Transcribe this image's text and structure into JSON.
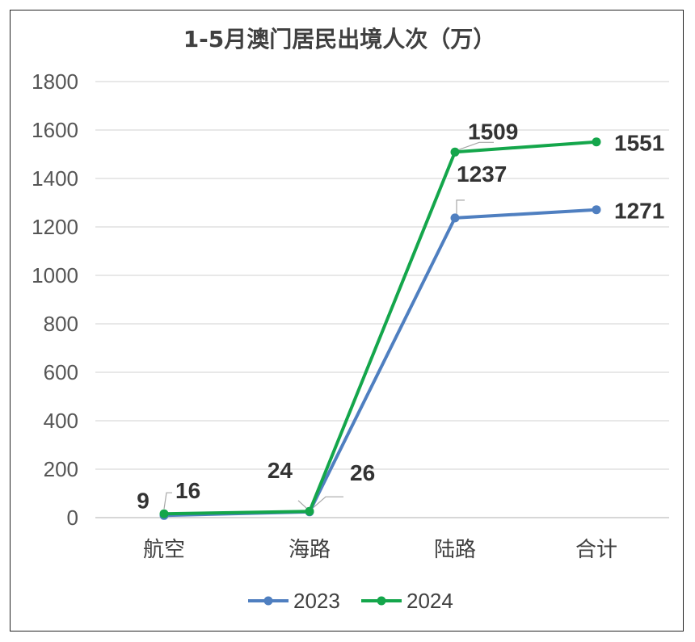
{
  "chart_data": {
    "type": "line",
    "title": "1-5月澳门居民出境人次（万）",
    "categories": [
      "航空",
      "海路",
      "陆路",
      "合计"
    ],
    "y_ticks": [
      "0",
      "200",
      "400",
      "600",
      "800",
      "1000",
      "1200",
      "1400",
      "1600",
      "1800"
    ],
    "ylim": [
      0,
      1800
    ],
    "grid": true,
    "legend_position": "bottom",
    "series": [
      {
        "name": "2023",
        "color": "#4f7fc0",
        "values": [
          9,
          24,
          1237,
          1271
        ],
        "labels": [
          "9",
          "24",
          "1237",
          "1271"
        ]
      },
      {
        "name": "2024",
        "color": "#14a64b",
        "values": [
          16,
          26,
          1509,
          1551
        ],
        "labels": [
          "16",
          "26",
          "1509",
          "1551"
        ]
      }
    ]
  }
}
